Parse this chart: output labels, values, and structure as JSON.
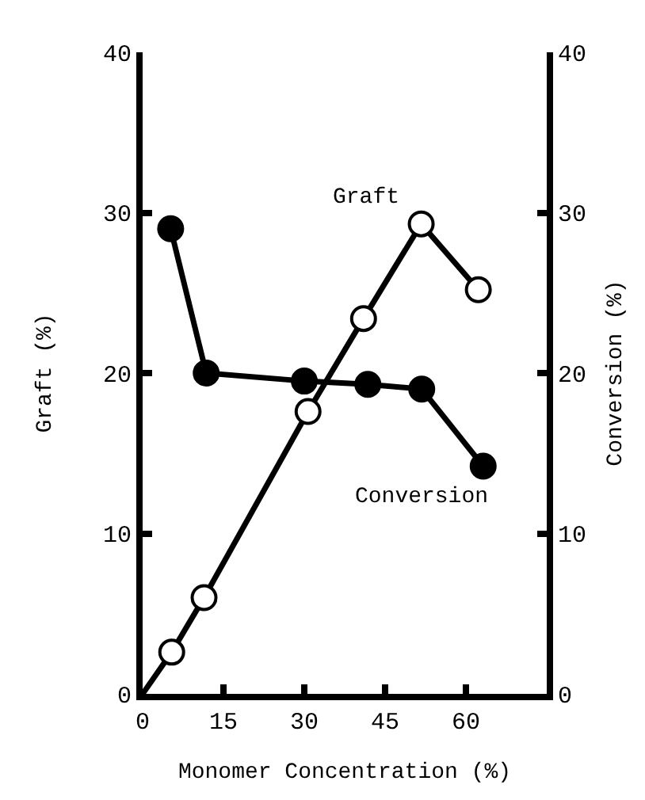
{
  "chart_data": {
    "type": "line",
    "xlabel": "Monomer Concentration (%)",
    "ylabel": "Graft (%)",
    "y2label": "Conversion (%)",
    "series": [
      {
        "name": "Graft",
        "color": "#000000",
        "x": [
          0,
          5.4,
          11.4,
          30.7,
          41,
          51.7,
          62.3
        ],
        "values": [
          0,
          2.6,
          6.0,
          17.6,
          23.4,
          29.3,
          25.2
        ]
      },
      {
        "name": "Conversion",
        "color": "#000000",
        "axis": "y2",
        "x": [
          5.2,
          11.8,
          30,
          41.8,
          51.8,
          63.2
        ],
        "values": [
          29.0,
          20.0,
          19.5,
          19.3,
          19.0,
          14.2
        ]
      }
    ],
    "xlim": [
      0,
      75
    ],
    "xticks": [
      0,
      15,
      30,
      45,
      60
    ],
    "ylim": [
      0,
      40
    ],
    "yticks": [
      0,
      10,
      20,
      30,
      40
    ],
    "y2lim": [
      0,
      40
    ],
    "y2ticks": [
      0,
      10,
      20,
      30,
      40
    ],
    "marker": "circle",
    "legend": false
  }
}
